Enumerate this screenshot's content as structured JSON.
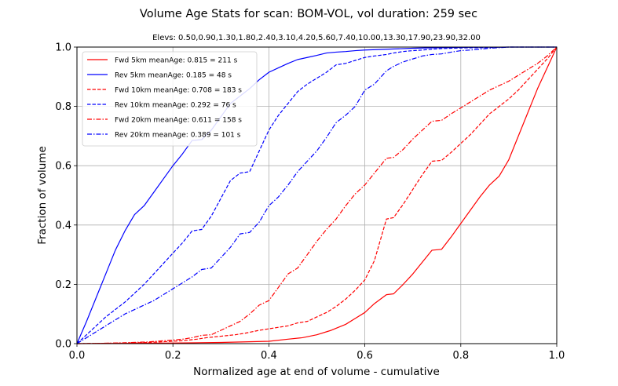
{
  "chart_data": {
    "type": "line",
    "title": "Volume Age Stats for scan: BOM-VOL, vol duration: 259 sec",
    "subtitle": "Elevs: 0.50,0.90,1.30,1.80,2.40,3.10,4.20,5.60,7.40,10.00,13.30,17.90,23.90,32.00",
    "xlabel": "Normalized age at end of volume - cumulative",
    "ylabel": "Fraction of volume",
    "xlim": [
      0,
      1
    ],
    "ylim": [
      0,
      1
    ],
    "xticks": [
      "0.0",
      "0.2",
      "0.4",
      "0.6",
      "0.8",
      "1.0"
    ],
    "yticks": [
      "0.0",
      "0.2",
      "0.4",
      "0.6",
      "0.8",
      "1.0"
    ],
    "grid": true,
    "legend": "top-left",
    "series": [
      {
        "name": "Fwd  5km meanAge: 0.815 = 211 s",
        "color": "#ff0000",
        "dash": "solid",
        "x": [
          0,
          0.2,
          0.3,
          0.4,
          0.44,
          0.47,
          0.5,
          0.53,
          0.56,
          0.58,
          0.6,
          0.62,
          0.645,
          0.66,
          0.68,
          0.7,
          0.72,
          0.74,
          0.76,
          0.78,
          0.8,
          0.82,
          0.84,
          0.86,
          0.88,
          0.9,
          0.92,
          0.94,
          0.96,
          0.98,
          1.0
        ],
        "y": [
          0,
          0.002,
          0.004,
          0.008,
          0.015,
          0.02,
          0.03,
          0.045,
          0.065,
          0.085,
          0.105,
          0.135,
          0.165,
          0.168,
          0.2,
          0.235,
          0.275,
          0.315,
          0.318,
          0.36,
          0.405,
          0.45,
          0.495,
          0.535,
          0.565,
          0.62,
          0.7,
          0.78,
          0.86,
          0.93,
          1.0
        ]
      },
      {
        "name": "Rev  5km meanAge: 0.185 = 48 s",
        "color": "#0000ff",
        "dash": "solid",
        "x": [
          0,
          0.02,
          0.04,
          0.06,
          0.08,
          0.1,
          0.12,
          0.14,
          0.16,
          0.18,
          0.2,
          0.22,
          0.24,
          0.26,
          0.28,
          0.3,
          0.32,
          0.34,
          0.36,
          0.38,
          0.4,
          0.42,
          0.44,
          0.46,
          0.48,
          0.5,
          0.52,
          0.54,
          0.56,
          0.58,
          0.6,
          0.65,
          0.7,
          0.75,
          0.8,
          0.9,
          1.0
        ],
        "y": [
          0,
          0.075,
          0.155,
          0.235,
          0.315,
          0.38,
          0.435,
          0.465,
          0.51,
          0.555,
          0.6,
          0.64,
          0.685,
          0.688,
          0.72,
          0.765,
          0.81,
          0.835,
          0.86,
          0.89,
          0.915,
          0.93,
          0.945,
          0.958,
          0.965,
          0.972,
          0.98,
          0.983,
          0.985,
          0.988,
          0.99,
          0.993,
          0.996,
          0.998,
          0.999,
          1.0,
          1.0
        ]
      },
      {
        "name": "Fwd 10km meanAge: 0.708 = 183 s",
        "color": "#ff0000",
        "dash": "dashed",
        "x": [
          0,
          0.1,
          0.15,
          0.2,
          0.22,
          0.25,
          0.27,
          0.3,
          0.33,
          0.35,
          0.38,
          0.4,
          0.42,
          0.44,
          0.46,
          0.48,
          0.5,
          0.52,
          0.54,
          0.56,
          0.58,
          0.6,
          0.62,
          0.645,
          0.66,
          0.68,
          0.7,
          0.72,
          0.74,
          0.76,
          0.78,
          0.8,
          0.82,
          0.84,
          0.86,
          0.88,
          0.9,
          0.92,
          0.94,
          0.96,
          0.98,
          1.0
        ],
        "y": [
          0,
          0.002,
          0.004,
          0.008,
          0.01,
          0.015,
          0.02,
          0.025,
          0.03,
          0.035,
          0.045,
          0.05,
          0.055,
          0.06,
          0.07,
          0.075,
          0.09,
          0.105,
          0.125,
          0.15,
          0.18,
          0.215,
          0.28,
          0.42,
          0.425,
          0.47,
          0.52,
          0.57,
          0.615,
          0.618,
          0.645,
          0.675,
          0.705,
          0.74,
          0.775,
          0.8,
          0.825,
          0.855,
          0.89,
          0.925,
          0.96,
          1.0
        ]
      },
      {
        "name": "Rev 10km meanAge: 0.292 = 76 s",
        "color": "#0000ff",
        "dash": "dashed",
        "x": [
          0,
          0.02,
          0.04,
          0.06,
          0.08,
          0.1,
          0.12,
          0.14,
          0.16,
          0.18,
          0.2,
          0.22,
          0.24,
          0.26,
          0.28,
          0.3,
          0.32,
          0.34,
          0.36,
          0.38,
          0.4,
          0.42,
          0.44,
          0.46,
          0.48,
          0.5,
          0.52,
          0.54,
          0.56,
          0.58,
          0.6,
          0.62,
          0.645,
          0.66,
          0.68,
          0.7,
          0.72,
          0.74,
          0.76,
          0.8,
          0.85,
          0.9,
          1.0
        ],
        "y": [
          0,
          0.03,
          0.06,
          0.09,
          0.115,
          0.14,
          0.17,
          0.2,
          0.235,
          0.27,
          0.305,
          0.34,
          0.38,
          0.385,
          0.43,
          0.49,
          0.55,
          0.575,
          0.58,
          0.65,
          0.72,
          0.77,
          0.81,
          0.85,
          0.875,
          0.895,
          0.915,
          0.94,
          0.945,
          0.955,
          0.965,
          0.97,
          0.975,
          0.98,
          0.985,
          0.988,
          0.99,
          0.993,
          0.995,
          0.997,
          0.998,
          1.0,
          1.0
        ]
      },
      {
        "name": "Fwd 20km meanAge: 0.611 = 158 s",
        "color": "#ff0000",
        "dash": "dashdot",
        "x": [
          0,
          0.05,
          0.1,
          0.15,
          0.2,
          0.22,
          0.24,
          0.26,
          0.28,
          0.3,
          0.32,
          0.34,
          0.36,
          0.38,
          0.4,
          0.42,
          0.44,
          0.46,
          0.48,
          0.5,
          0.52,
          0.54,
          0.56,
          0.58,
          0.6,
          0.62,
          0.645,
          0.66,
          0.68,
          0.7,
          0.72,
          0.74,
          0.76,
          0.78,
          0.8,
          0.82,
          0.84,
          0.86,
          0.88,
          0.9,
          0.92,
          0.94,
          0.96,
          0.98,
          1.0
        ],
        "y": [
          0,
          0.001,
          0.003,
          0.006,
          0.012,
          0.015,
          0.02,
          0.028,
          0.03,
          0.045,
          0.06,
          0.075,
          0.1,
          0.13,
          0.145,
          0.19,
          0.235,
          0.255,
          0.3,
          0.345,
          0.385,
          0.42,
          0.465,
          0.505,
          0.535,
          0.575,
          0.625,
          0.628,
          0.655,
          0.69,
          0.72,
          0.75,
          0.753,
          0.775,
          0.795,
          0.815,
          0.835,
          0.855,
          0.87,
          0.885,
          0.905,
          0.925,
          0.945,
          0.97,
          1.0
        ]
      },
      {
        "name": "Rev 20km meanAge: 0.389 = 101 s",
        "color": "#0000ff",
        "dash": "dashdot",
        "x": [
          0,
          0.02,
          0.04,
          0.06,
          0.08,
          0.1,
          0.12,
          0.14,
          0.16,
          0.18,
          0.2,
          0.22,
          0.24,
          0.26,
          0.28,
          0.3,
          0.32,
          0.34,
          0.36,
          0.38,
          0.4,
          0.42,
          0.44,
          0.46,
          0.48,
          0.5,
          0.52,
          0.54,
          0.56,
          0.58,
          0.6,
          0.62,
          0.645,
          0.66,
          0.68,
          0.7,
          0.72,
          0.74,
          0.76,
          0.78,
          0.8,
          0.82,
          0.84,
          0.86,
          0.88,
          0.9,
          1.0
        ],
        "y": [
          0,
          0.02,
          0.04,
          0.06,
          0.08,
          0.1,
          0.115,
          0.13,
          0.145,
          0.165,
          0.185,
          0.205,
          0.225,
          0.25,
          0.255,
          0.29,
          0.325,
          0.37,
          0.375,
          0.41,
          0.465,
          0.495,
          0.535,
          0.58,
          0.615,
          0.65,
          0.695,
          0.745,
          0.77,
          0.8,
          0.855,
          0.875,
          0.92,
          0.935,
          0.95,
          0.96,
          0.97,
          0.975,
          0.977,
          0.983,
          0.988,
          0.99,
          0.993,
          0.996,
          0.998,
          1.0,
          1.0
        ]
      }
    ]
  }
}
